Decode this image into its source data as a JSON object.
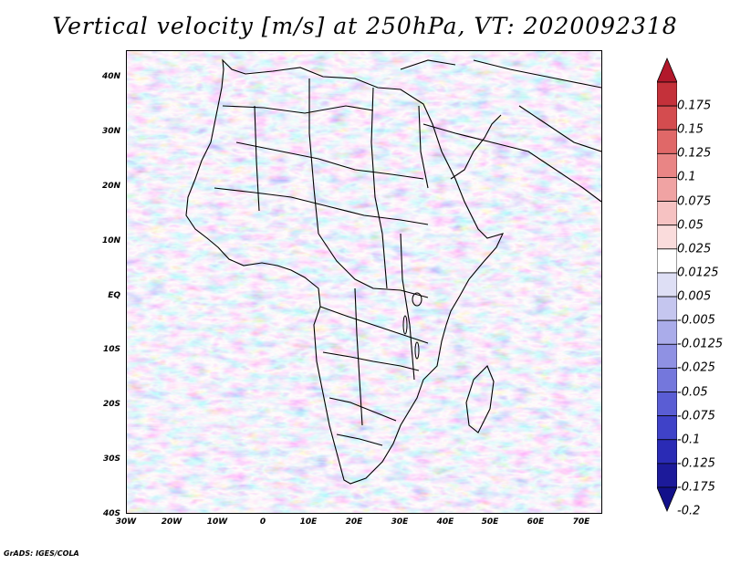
{
  "title": "Vertical velocity [m/s] at 250hPa, VT: 2020092318",
  "credit": "GrADS: IGES/COLA",
  "map": {
    "latitude_labels": [
      "40N",
      "30N",
      "20N",
      "10N",
      "EQ",
      "10S",
      "20S",
      "30S",
      "40S"
    ],
    "latitude_values": [
      40,
      30,
      20,
      10,
      0,
      -10,
      -20,
      -30,
      -40
    ],
    "longitude_labels": [
      "30W",
      "20W",
      "10W",
      "0",
      "10E",
      "20E",
      "30E",
      "40E",
      "50E",
      "60E",
      "70E"
    ],
    "longitude_values": [
      -30,
      -20,
      -10,
      0,
      10,
      20,
      30,
      40,
      50,
      60,
      70
    ],
    "lat_range": [
      -40,
      45
    ],
    "lon_range": [
      -30,
      75
    ],
    "region": "Africa",
    "field": "vertical velocity",
    "level": "250hPa"
  },
  "colorbar": {
    "labels": [
      "0.175",
      "0.15",
      "0.125",
      "0.1",
      "0.075",
      "0.05",
      "0.025",
      "0.0125",
      "0.005",
      "-0.005",
      "-0.0125",
      "-0.025",
      "-0.05",
      "-0.075",
      "-0.1",
      "-0.125",
      "-0.175",
      "-0.2"
    ],
    "colors": [
      "#b2182b",
      "#c4313a",
      "#d44c4f",
      "#e06868",
      "#e98585",
      "#f0a3a3",
      "#f6c2c2",
      "#fadcdc",
      "#ffffff",
      "#dedff5",
      "#c5c6ef",
      "#aaacea",
      "#8f91e3",
      "#7477dc",
      "#5a5dd4",
      "#3f42c8",
      "#2a2bb5",
      "#1c1a9a",
      "#12108a"
    ]
  },
  "colors": {
    "positive": "#d9534f",
    "negative": "#5a5dd4",
    "background_field": "#cfd2f2",
    "boundaries": "#000000"
  }
}
